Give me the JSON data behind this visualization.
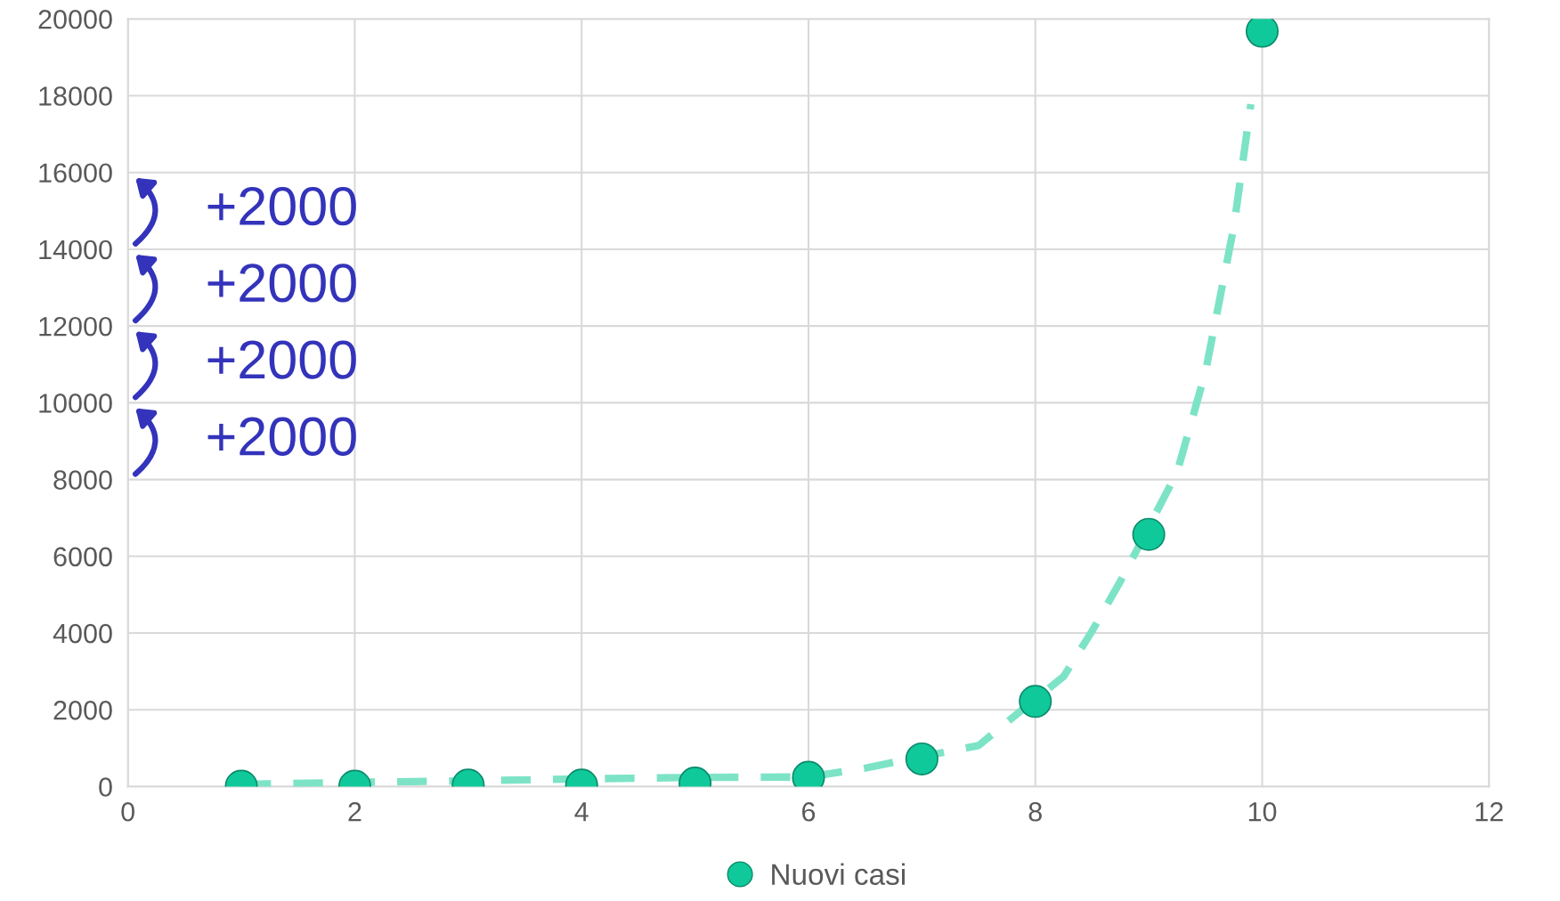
{
  "chart_data": {
    "type": "scatter",
    "series": [
      {
        "name": "Nuovi casi",
        "color": "#10c99a",
        "marker": "circle",
        "x": [
          1,
          2,
          3,
          4,
          5,
          6,
          7,
          8,
          9,
          10
        ],
        "values": [
          10,
          10,
          40,
          40,
          90,
          240,
          720,
          2220,
          6570,
          19680
        ]
      },
      {
        "type": "line",
        "color": "#7de3c6",
        "line_style": "dashed",
        "marker": "none",
        "x": [
          1,
          2,
          3,
          4,
          5,
          6,
          6.5,
          7,
          7.5,
          7.85,
          8.25,
          8.5,
          8.75,
          8.9,
          9.25,
          9.5,
          9.75,
          9.9
        ],
        "values": [
          60,
          110,
          150,
          200,
          240,
          250,
          480,
          780,
          1070,
          1920,
          2870,
          4050,
          5350,
          6190,
          8190,
          10800,
          14580,
          17780
        ]
      }
    ],
    "xlim": [
      0,
      12
    ],
    "xticks": [
      0,
      2,
      4,
      6,
      8,
      10,
      12
    ],
    "ylim": [
      0,
      20000
    ],
    "yticks": [
      0,
      2000,
      4000,
      6000,
      8000,
      10000,
      12000,
      14000,
      16000,
      18000,
      20000
    ],
    "grid": true,
    "legend": "bottom",
    "annotations": [
      "+2000",
      "+2000",
      "+2000",
      "+2000"
    ]
  }
}
